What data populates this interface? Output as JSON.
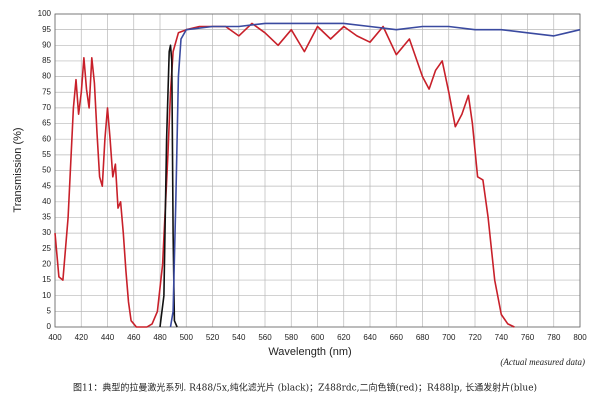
{
  "chart_data": {
    "type": "line",
    "x_label": "Wavelength (nm)",
    "y_label": "Transmission (%)",
    "annotation": "(Actual measured data)",
    "caption": "图11：典型的拉曼激光系列. R488/5x,纯化滤光片 (black)；Z488rdc,二向色镜(red)；R488lp, 长通发射片(blue)",
    "xlim": [
      400,
      800
    ],
    "ylim": [
      0,
      100
    ],
    "xticks": [
      400,
      420,
      440,
      460,
      480,
      500,
      520,
      540,
      560,
      580,
      600,
      620,
      640,
      660,
      680,
      700,
      720,
      740,
      760,
      780,
      800
    ],
    "yticks": [
      0,
      5,
      10,
      15,
      20,
      25,
      30,
      35,
      40,
      45,
      50,
      55,
      60,
      65,
      70,
      75,
      80,
      85,
      90,
      95,
      100
    ],
    "grid": true,
    "series": [
      {
        "color": "#c8202a",
        "x": [
          400,
          403,
          406,
          410,
          414,
          416,
          418,
          420,
          422,
          424,
          426,
          428,
          430,
          432,
          434,
          436,
          438,
          440,
          442,
          444,
          446,
          448,
          450,
          452,
          454,
          456,
          458,
          462,
          470,
          474,
          478,
          482,
          486,
          488,
          490,
          494,
          500,
          510,
          520,
          530,
          540,
          550,
          560,
          570,
          580,
          590,
          600,
          610,
          620,
          630,
          640,
          650,
          660,
          670,
          680,
          685,
          690,
          695,
          700,
          705,
          710,
          715,
          718,
          722,
          726,
          730,
          735,
          740,
          745,
          750
        ],
        "values": [
          30,
          16,
          15,
          35,
          70,
          79,
          68,
          75,
          86,
          76,
          70,
          86,
          78,
          62,
          48,
          45,
          60,
          70,
          60,
          48,
          52,
          38,
          40,
          30,
          18,
          8,
          2,
          0,
          0,
          1,
          5,
          20,
          55,
          75,
          88,
          94,
          95,
          96,
          96,
          96,
          93,
          97,
          94,
          90,
          95,
          88,
          96,
          92,
          96,
          93,
          91,
          96,
          87,
          92,
          80,
          76,
          82,
          85,
          75,
          64,
          68,
          74,
          65,
          48,
          47,
          35,
          15,
          4,
          1,
          0
        ]
      },
      {
        "color": "#111111",
        "x": [
          480,
          483,
          485,
          487,
          488,
          489,
          490,
          491,
          493
        ],
        "values": [
          0,
          10,
          60,
          88,
          90,
          85,
          30,
          2,
          0
        ]
      },
      {
        "color": "#3a4aa0",
        "x": [
          488,
          490,
          492,
          494,
          496,
          500,
          520,
          540,
          560,
          580,
          600,
          620,
          640,
          660,
          680,
          700,
          720,
          740,
          760,
          780,
          790,
          800
        ],
        "values": [
          0,
          5,
          40,
          80,
          92,
          95,
          96,
          96,
          97,
          97,
          97,
          97,
          96,
          95,
          96,
          96,
          95,
          95,
          94,
          93,
          94,
          95
        ]
      }
    ]
  }
}
